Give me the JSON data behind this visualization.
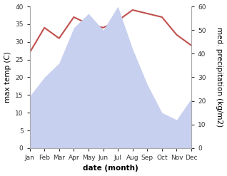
{
  "months": [
    "Jan",
    "Feb",
    "Mar",
    "Apr",
    "May",
    "Jun",
    "Jul",
    "Aug",
    "Sep",
    "Oct",
    "Nov",
    "Dec"
  ],
  "x": [
    1,
    2,
    3,
    4,
    5,
    6,
    7,
    8,
    9,
    10,
    11,
    12
  ],
  "temperature": [
    27,
    34,
    31,
    37,
    35,
    34,
    36,
    39,
    38,
    37,
    32,
    29
  ],
  "precipitation": [
    22,
    30,
    36,
    51,
    57,
    50,
    60,
    42,
    27,
    15,
    12,
    21
  ],
  "temp_color": "#c0504d",
  "precip_fill_color": "#c8d0f0",
  "ylim_temp": [
    0,
    40
  ],
  "ylim_precip": [
    0,
    60
  ],
  "xlabel": "date (month)",
  "ylabel_left": "max temp (C)",
  "ylabel_right": "med. precipitation (kg/m2)",
  "bg_color": "#ffffff",
  "label_fontsize": 7.5,
  "tick_fontsize": 6.5
}
